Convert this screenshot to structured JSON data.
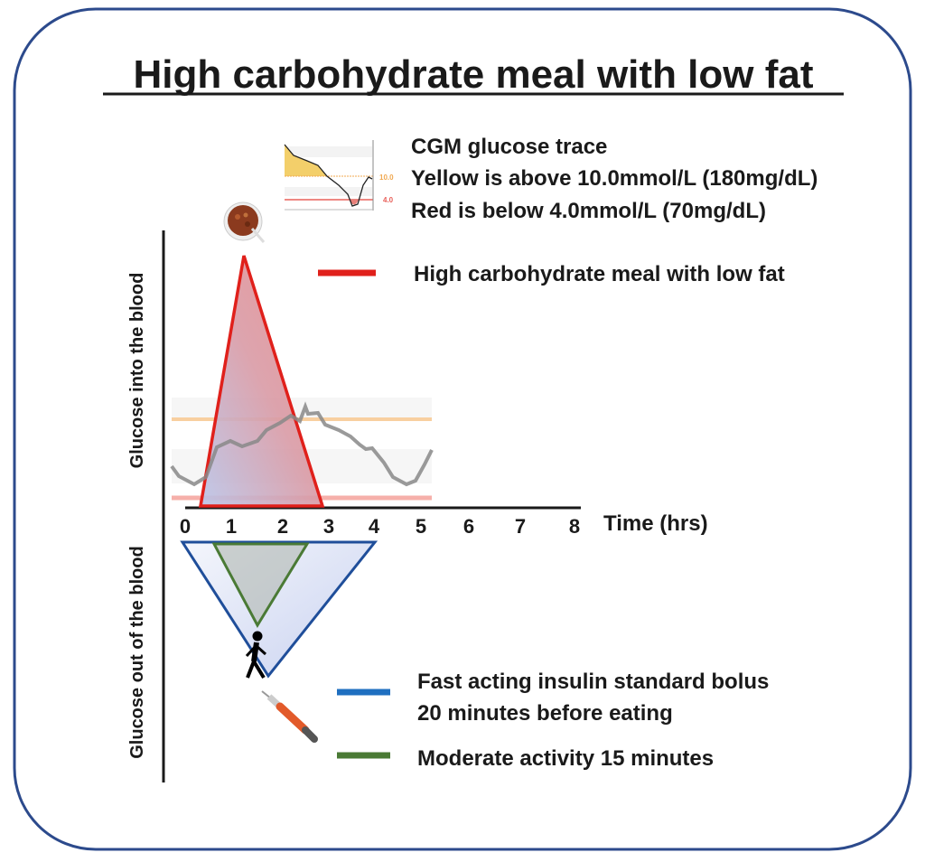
{
  "title": "High carbohydrate meal with low fat",
  "cgm_legend": {
    "line1": "CGM glucose trace",
    "line2": "Yellow is above 10.0mmol/L (180mg/dL)",
    "line3": "Red is below 4.0mmol/L (70mg/dL)",
    "thumb_high": "10.0",
    "thumb_low": "4.0"
  },
  "legend": {
    "meal": "High carbohydrate meal with low fat",
    "insulin_line1": "Fast acting insulin standard bolus",
    "insulin_line2": "20 minutes before eating",
    "activity": "Moderate activity 15 minutes"
  },
  "axes": {
    "y_top": "Glucose into the blood",
    "y_bottom": "Glucose out of the blood",
    "x_label": "Time (hrs)",
    "x_ticks": [
      "0",
      "1",
      "2",
      "3",
      "4",
      "5",
      "6",
      "7",
      "8"
    ]
  },
  "colors": {
    "border": "#2c4a8c",
    "meal": "#e0201b",
    "insulin": "#1f5fb0",
    "activity": "#4a7a35",
    "high": "#f5c27a",
    "low": "#f0a09a"
  }
}
